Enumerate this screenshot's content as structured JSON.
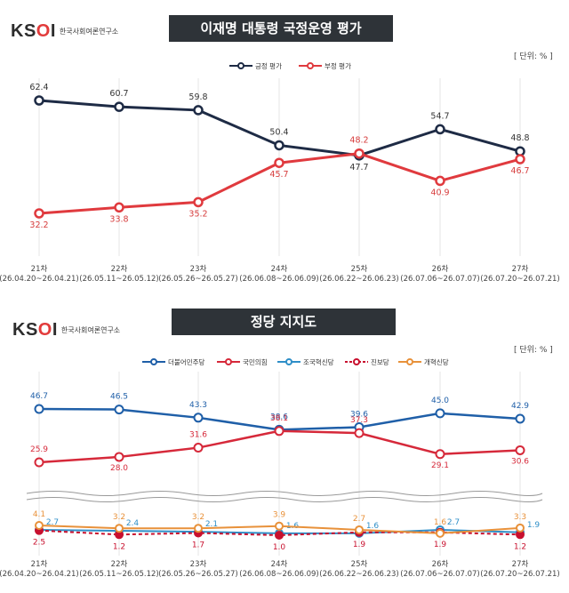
{
  "logo": {
    "mark": "KSOI",
    "name": "한국사회여론연구소"
  },
  "unit": "[ 단위: % ]",
  "chart_data": [
    {
      "type": "line",
      "title": "이재명 대통령 국정운영 평가",
      "categories": [
        "21차\n(26.04.20~26.04.21)",
        "22차\n(26.05.11~26.05.12)",
        "23차\n(26.05.26~26.05.27)",
        "24차\n(26.06.08~26.06.09)",
        "25차\n(26.06.22~26.06.23)",
        "26차\n(26.07.06~26.07.07)",
        "27차\n(26.07.20~26.07.21)"
      ],
      "series": [
        {
          "name": "긍정 평가",
          "color": "#1e2b45",
          "values": [
            62.4,
            60.7,
            59.8,
            50.4,
            47.7,
            54.7,
            48.8
          ]
        },
        {
          "name": "부정 평가",
          "color": "#e03a3e",
          "values": [
            32.2,
            33.8,
            35.2,
            45.7,
            48.2,
            40.9,
            46.7
          ]
        }
      ]
    },
    {
      "type": "line",
      "title": "정당 지지도",
      "categories": [
        "21차\n(26.04.20~26.04.21)",
        "22차\n(26.05.11~26.05.12)",
        "23차\n(26.05.26~26.05.27)",
        "24차\n(26.06.08~26.06.09)",
        "25차\n(26.06.22~26.06.23)",
        "26차\n(26.07.06~26.07.07)",
        "27차\n(26.07.20~26.07.21)"
      ],
      "broken_axis": true,
      "series": [
        {
          "name": "더불어민주당",
          "color": "#1f5fa8",
          "values": [
            46.7,
            46.5,
            43.3,
            38.6,
            39.6,
            45.0,
            42.9
          ]
        },
        {
          "name": "국민의힘",
          "color": "#d6293a",
          "values": [
            25.9,
            28.0,
            31.6,
            38.1,
            37.3,
            29.1,
            30.6
          ]
        },
        {
          "name": "조국혁신당",
          "color": "#2f8fc8",
          "values": [
            2.7,
            2.4,
            2.1,
            1.6,
            1.6,
            2.7,
            1.9
          ]
        },
        {
          "name": "진보당",
          "color": "#c8102e",
          "dashed": true,
          "values": [
            2.5,
            1.2,
            1.7,
            1.0,
            1.9,
            1.9,
            1.2
          ]
        },
        {
          "name": "개혁신당",
          "color": "#e8913a",
          "values": [
            4.1,
            3.2,
            3.2,
            3.9,
            2.7,
            1.6,
            3.3
          ]
        }
      ]
    }
  ]
}
